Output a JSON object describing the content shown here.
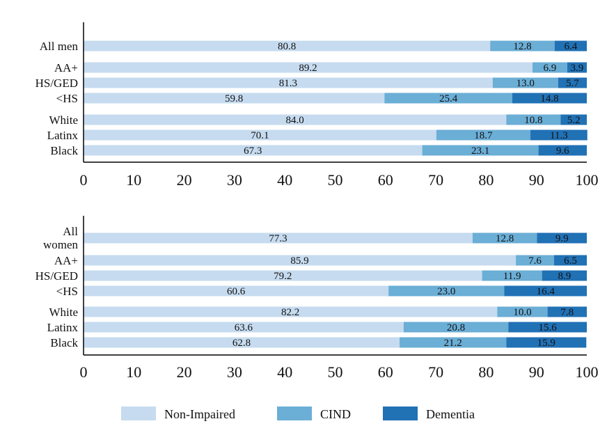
{
  "colors": {
    "non_impaired": "#c6dbef",
    "cind": "#6baed6",
    "dementia": "#2171b5",
    "axis": "#000000",
    "text": "#111111"
  },
  "legend": {
    "items": [
      {
        "key": "non_impaired",
        "label": "Non-Impaired"
      },
      {
        "key": "cind",
        "label": "CIND"
      },
      {
        "key": "dementia",
        "label": "Dementia"
      }
    ]
  },
  "chart_data": [
    {
      "type": "bar",
      "orientation": "horizontal",
      "stacked": true,
      "xlim": [
        0,
        100
      ],
      "xticks": [
        0,
        10,
        20,
        30,
        40,
        50,
        60,
        70,
        80,
        90,
        100
      ],
      "categories": [
        "All men",
        "AA+",
        "HS/GED",
        "<HS",
        "White",
        "Latinx",
        "Black"
      ],
      "series": [
        {
          "name": "Non-Impaired",
          "values": [
            80.8,
            89.2,
            81.3,
            59.8,
            84.0,
            70.1,
            67.3
          ]
        },
        {
          "name": "CIND",
          "values": [
            12.8,
            6.9,
            13.0,
            25.4,
            10.8,
            18.7,
            23.1
          ]
        },
        {
          "name": "Dementia",
          "values": [
            6.4,
            3.9,
            5.7,
            14.8,
            5.2,
            11.3,
            9.6
          ]
        }
      ],
      "labels": [
        [
          "80.8",
          "89.2",
          "81.3",
          "59.8",
          "84.0",
          "70.1",
          "67.3"
        ],
        [
          "12.8",
          "6.9",
          "13.0",
          "25.4",
          "10.8",
          "18.7",
          "23.1"
        ],
        [
          "6.4",
          "3.9",
          "5.7",
          "14.8",
          "5.2",
          "11.3",
          "9.6"
        ]
      ]
    },
    {
      "type": "bar",
      "orientation": "horizontal",
      "stacked": true,
      "xlim": [
        0,
        100
      ],
      "xticks": [
        0,
        10,
        20,
        30,
        40,
        50,
        60,
        70,
        80,
        90,
        100
      ],
      "categories": [
        "All women",
        "AA+",
        "HS/GED",
        "<HS",
        "White",
        "Latinx",
        "Black"
      ],
      "series": [
        {
          "name": "Non-Impaired",
          "values": [
            77.3,
            85.9,
            79.2,
            60.6,
            82.2,
            63.6,
            62.8
          ]
        },
        {
          "name": "CIND",
          "values": [
            12.8,
            7.6,
            11.9,
            23.0,
            10.0,
            20.8,
            21.2
          ]
        },
        {
          "name": "Dementia",
          "values": [
            9.9,
            6.5,
            8.9,
            16.4,
            7.8,
            15.6,
            15.9
          ]
        }
      ],
      "labels": [
        [
          "77.3",
          "85.9",
          "79.2",
          "60.6",
          "82.2",
          "63.6",
          "62.8"
        ],
        [
          "12.8",
          "7.6",
          "11.9",
          "23.0",
          "10.0",
          "20.8",
          "21.2"
        ],
        [
          "9.9",
          "6.5",
          "8.9",
          "16.4",
          "7.8",
          "15.6",
          "15.9"
        ]
      ]
    }
  ]
}
